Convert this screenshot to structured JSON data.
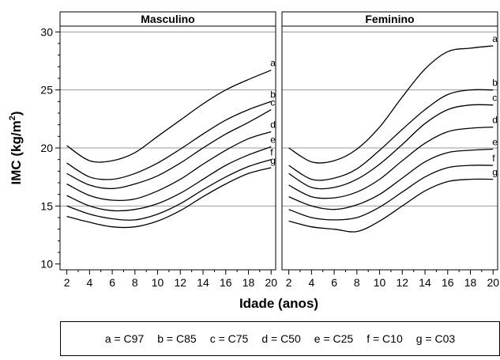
{
  "chart_data": {
    "type": "line",
    "ylabel_prefix": "IMC (kg/m",
    "ylabel_sup": "2",
    "ylabel_suffix": ")",
    "xlabel": "Idade (anos)",
    "ylim": [
      9.5,
      30.5
    ],
    "xlim": [
      1.4,
      20.4
    ],
    "yticks": [
      10,
      15,
      20,
      25,
      30
    ],
    "xticks": [
      2,
      4,
      6,
      8,
      10,
      12,
      14,
      16,
      18,
      20
    ],
    "reference_lines": [
      15,
      20,
      25,
      30
    ],
    "x": [
      2,
      4,
      6,
      8,
      10,
      12,
      14,
      16,
      18,
      20
    ],
    "panels": [
      {
        "title": "Masculino",
        "series": [
          {
            "name": "a",
            "values": [
              20.2,
              18.9,
              18.9,
              19.6,
              21.0,
              22.4,
              23.8,
              25.0,
              25.9,
              26.7
            ]
          },
          {
            "name": "b",
            "values": [
              18.7,
              17.5,
              17.3,
              17.8,
              18.7,
              19.9,
              21.2,
              22.4,
              23.3,
              24.0
            ]
          },
          {
            "name": "c",
            "values": [
              17.8,
              16.8,
              16.5,
              16.9,
              17.6,
              18.7,
              20.0,
              21.2,
              22.2,
              23.3
            ]
          },
          {
            "name": "d",
            "values": [
              16.9,
              15.9,
              15.5,
              15.6,
              16.3,
              17.3,
              18.6,
              19.8,
              20.8,
              21.4
            ]
          },
          {
            "name": "e",
            "values": [
              15.9,
              15.0,
              14.6,
              14.7,
              15.2,
              16.1,
              17.3,
              18.5,
              19.4,
              20.1
            ]
          },
          {
            "name": "f",
            "values": [
              15.0,
              14.3,
              13.9,
              13.8,
              14.3,
              15.2,
              16.4,
              17.5,
              18.4,
              19.0
            ]
          },
          {
            "name": "g",
            "values": [
              14.1,
              13.6,
              13.2,
              13.2,
              13.7,
              14.6,
              15.8,
              16.9,
              17.8,
              18.3
            ]
          }
        ]
      },
      {
        "title": "Feminino",
        "series": [
          {
            "name": "a",
            "values": [
              20.0,
              18.8,
              18.9,
              19.9,
              21.8,
              24.4,
              26.8,
              28.3,
              28.6,
              28.8
            ]
          },
          {
            "name": "b",
            "values": [
              18.5,
              17.3,
              17.4,
              18.2,
              19.8,
              21.6,
              23.3,
              24.6,
              25.0,
              25.0
            ]
          },
          {
            "name": "c",
            "values": [
              17.8,
              16.6,
              16.6,
              17.3,
              18.6,
              20.3,
              22.1,
              23.3,
              23.7,
              23.7
            ]
          },
          {
            "name": "d",
            "values": [
              16.8,
              15.8,
              15.7,
              16.2,
              17.3,
              18.9,
              20.4,
              21.4,
              21.7,
              21.8
            ]
          },
          {
            "name": "e",
            "values": [
              15.8,
              15.0,
              14.7,
              15.1,
              16.0,
              17.4,
              18.8,
              19.6,
              19.8,
              19.9
            ]
          },
          {
            "name": "f",
            "values": [
              14.7,
              14.0,
              13.8,
              14.0,
              14.9,
              16.2,
              17.5,
              18.3,
              18.5,
              18.5
            ]
          },
          {
            "name": "g",
            "values": [
              13.7,
              13.2,
              13.0,
              12.8,
              13.7,
              15.0,
              16.3,
              17.1,
              17.3,
              17.3
            ]
          }
        ]
      }
    ],
    "legend": [
      {
        "key": "a",
        "text": "a = C97"
      },
      {
        "key": "b",
        "text": "b = C85"
      },
      {
        "key": "c",
        "text": "c = C75"
      },
      {
        "key": "d",
        "text": "d = C50"
      },
      {
        "key": "e",
        "text": "e = C25"
      },
      {
        "key": "f",
        "text": "f = C10"
      },
      {
        "key": "g",
        "text": "g = C03"
      }
    ],
    "grid": false,
    "colors": {
      "line": "#000000",
      "reference": "#999999"
    }
  }
}
